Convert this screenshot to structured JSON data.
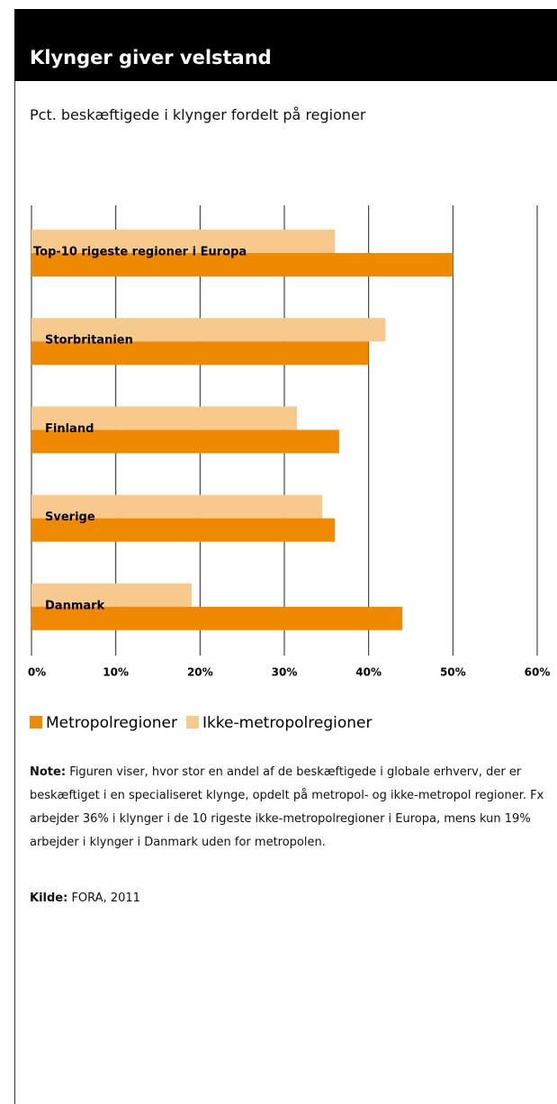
{
  "chart_data": {
    "type": "hbar",
    "title": "Klynger giver velstand",
    "subtitle": "Pct. beskæftigede i klynger fordelt på regioner",
    "categories": [
      "Top-10 rigeste regioner i Europa",
      "Storbritanien",
      "Finland",
      "Sverige",
      "Danmark"
    ],
    "series": [
      {
        "name": "Metropolregioner",
        "color": "#ef8a00",
        "values": [
          50,
          40,
          36.5,
          36,
          44
        ]
      },
      {
        "name": "Ikke-metropolregioner",
        "color": "#f7c98c",
        "values": [
          36,
          42,
          31.5,
          34.5,
          19
        ]
      }
    ],
    "xlim": [
      0,
      60
    ],
    "xticks": [
      {
        "value": 0,
        "label": "0%"
      },
      {
        "value": 10,
        "label": "10%"
      },
      {
        "value": 20,
        "label": "20%"
      },
      {
        "value": 30,
        "label": "30%"
      },
      {
        "value": 40,
        "label": "40%"
      },
      {
        "value": 50,
        "label": "50%"
      },
      {
        "value": 60,
        "label": "60%"
      }
    ],
    "grid": true,
    "note_label": "Note:",
    "note": "Figuren viser, hvor stor en andel af de beskæftigede i globale erhverv, der er beskæftiget i en specialiseret klynge, opdelt på metropol- og ikke-metropol regioner. Fx arbejder 36% i klynger i de 10 rigeste ikke-metropolregioner i Europa, mens kun 19% arbejder i klynger i Danmark uden for metropolen.",
    "source_label": "Kilde:",
    "source": "FORA, 2011"
  }
}
